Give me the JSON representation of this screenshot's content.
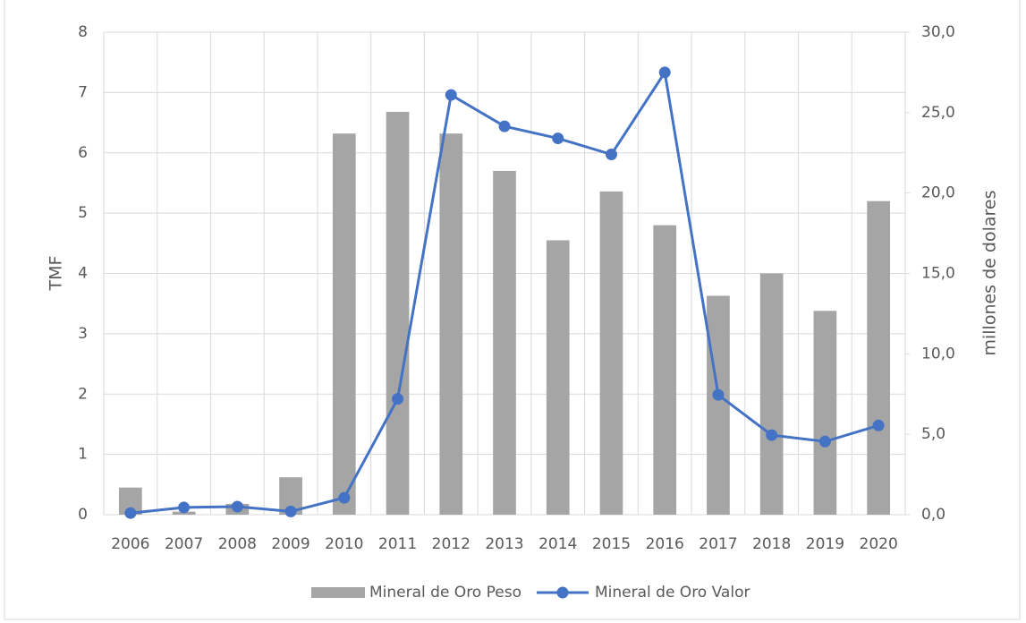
{
  "chart_data": {
    "type": "bar_line",
    "categories": [
      "2006",
      "2007",
      "2008",
      "2009",
      "2010",
      "2011",
      "2012",
      "2013",
      "2014",
      "2015",
      "2016",
      "2017",
      "2018",
      "2019",
      "2020"
    ],
    "series": [
      {
        "name": "Mineral de Oro Peso",
        "type": "bar",
        "color": "#a5a5a5",
        "values": [
          0.45,
          0.05,
          0.18,
          0.62,
          6.32,
          6.68,
          6.32,
          5.7,
          4.55,
          5.36,
          4.8,
          3.63,
          4.0,
          3.38,
          5.2
        ]
      },
      {
        "name": "Mineral de Oro Valor",
        "type": "line",
        "axis": "y2",
        "color": "#4472c4",
        "values": [
          0.1,
          0.45,
          0.5,
          0.2,
          1.05,
          7.2,
          26.1,
          24.15,
          23.4,
          22.4,
          27.5,
          7.45,
          4.95,
          4.55,
          5.55
        ]
      }
    ],
    "ylabel": "TMF",
    "y2label": "millones de dolares",
    "ylim": [
      0,
      8
    ],
    "yticks": [
      0,
      1,
      2,
      3,
      4,
      5,
      6,
      7,
      8
    ],
    "y2lim": [
      0,
      30
    ],
    "y2ticks": [
      {
        "value": 0,
        "label": "0,0"
      },
      {
        "value": 5,
        "label": "5,0"
      },
      {
        "value": 10,
        "label": "10,0"
      },
      {
        "value": 15,
        "label": "15,0"
      },
      {
        "value": 20,
        "label": "20,0"
      },
      {
        "value": 25,
        "label": "25,0"
      },
      {
        "value": 30,
        "label": "30,0"
      }
    ],
    "grid": true,
    "legend": "bottom"
  }
}
